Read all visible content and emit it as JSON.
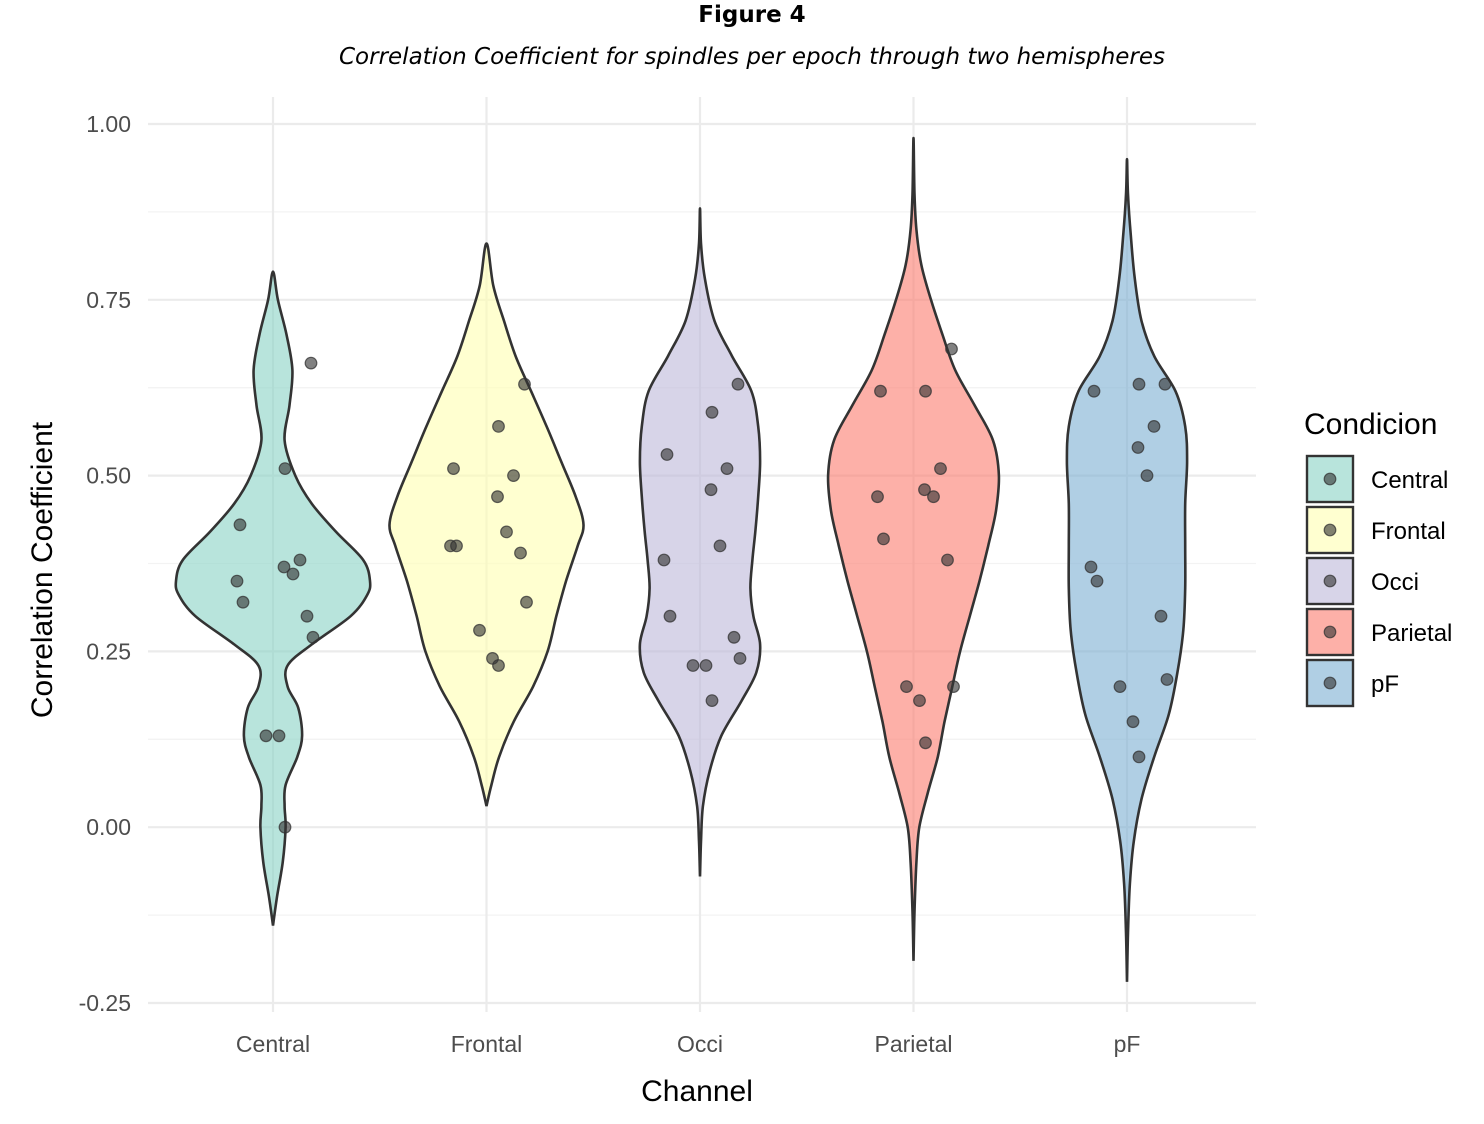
{
  "figure_label": "Figure 4",
  "figure_title": "Correlation Coefficient for spindles per epoch through two hemispheres",
  "chart_data": {
    "type": "violin",
    "xlabel": "Channel",
    "ylabel": "Correlation Coefficient",
    "ylim": [
      -0.25,
      1.0
    ],
    "yticks": [
      -0.25,
      0.0,
      0.25,
      0.5,
      0.75,
      1.0
    ],
    "ytick_labels": [
      "-0.25",
      "0.00",
      "0.25",
      "0.50",
      "0.75",
      "1.00"
    ],
    "grid": true,
    "legend": {
      "title": "Condicion",
      "placement": "right"
    },
    "categories": [
      "Central",
      "Frontal",
      "Occi",
      "Parietal",
      "pF"
    ],
    "series": [
      {
        "name": "Central",
        "color": "#8dd3c7",
        "range": [
          -0.14,
          0.79
        ],
        "density": [
          [
            -0.14,
            0.0
          ],
          [
            -0.1,
            0.04
          ],
          [
            -0.05,
            0.1
          ],
          [
            0.0,
            0.13
          ],
          [
            0.03,
            0.12
          ],
          [
            0.06,
            0.13
          ],
          [
            0.1,
            0.25
          ],
          [
            0.13,
            0.3
          ],
          [
            0.17,
            0.26
          ],
          [
            0.2,
            0.15
          ],
          [
            0.23,
            0.15
          ],
          [
            0.26,
            0.4
          ],
          [
            0.3,
            0.8
          ],
          [
            0.33,
            0.97
          ],
          [
            0.35,
            1.0
          ],
          [
            0.38,
            0.93
          ],
          [
            0.42,
            0.65
          ],
          [
            0.46,
            0.4
          ],
          [
            0.5,
            0.23
          ],
          [
            0.55,
            0.12
          ],
          [
            0.6,
            0.17
          ],
          [
            0.65,
            0.2
          ],
          [
            0.7,
            0.14
          ],
          [
            0.75,
            0.05
          ],
          [
            0.79,
            0.0
          ]
        ],
        "points": [
          [
            0.66,
            0.65
          ],
          [
            0.51,
            0.51
          ],
          [
            0.43,
            0.43
          ],
          [
            0.38,
            0.38
          ],
          [
            0.37,
            0.37
          ],
          [
            0.36,
            0.36
          ],
          [
            0.35,
            0.35
          ],
          [
            0.32,
            0.32
          ],
          [
            0.3,
            0.3
          ],
          [
            0.27,
            0.27
          ],
          [
            0.13,
            0.13
          ],
          [
            0.13,
            0.13
          ],
          [
            0.0,
            0.0
          ]
        ]
      },
      {
        "name": "Frontal",
        "color": "#ffffb3",
        "range": [
          0.03,
          0.83
        ],
        "density": [
          [
            0.03,
            0.0
          ],
          [
            0.06,
            0.05
          ],
          [
            0.1,
            0.13
          ],
          [
            0.15,
            0.28
          ],
          [
            0.2,
            0.48
          ],
          [
            0.25,
            0.63
          ],
          [
            0.3,
            0.72
          ],
          [
            0.35,
            0.82
          ],
          [
            0.4,
            0.94
          ],
          [
            0.43,
            1.0
          ],
          [
            0.47,
            0.92
          ],
          [
            0.52,
            0.77
          ],
          [
            0.57,
            0.62
          ],
          [
            0.62,
            0.46
          ],
          [
            0.67,
            0.3
          ],
          [
            0.72,
            0.18
          ],
          [
            0.77,
            0.07
          ],
          [
            0.83,
            0.0
          ]
        ],
        "points": [
          [
            0.63,
            0.63
          ],
          [
            0.57,
            0.57
          ],
          [
            0.51,
            0.51
          ],
          [
            0.5,
            0.5
          ],
          [
            0.47,
            0.47
          ],
          [
            0.42,
            0.42
          ],
          [
            0.4,
            0.4
          ],
          [
            0.4,
            0.4
          ],
          [
            0.39,
            0.39
          ],
          [
            0.32,
            0.32
          ],
          [
            0.28,
            0.28
          ],
          [
            0.24,
            0.24
          ],
          [
            0.23,
            0.23
          ]
        ]
      },
      {
        "name": "Occi",
        "color": "#bebada",
        "range": [
          -0.07,
          0.88
        ],
        "density": [
          [
            -0.07,
            0.0
          ],
          [
            -0.02,
            0.01
          ],
          [
            0.03,
            0.03
          ],
          [
            0.08,
            0.1
          ],
          [
            0.13,
            0.22
          ],
          [
            0.18,
            0.43
          ],
          [
            0.22,
            0.58
          ],
          [
            0.26,
            0.62
          ],
          [
            0.3,
            0.55
          ],
          [
            0.34,
            0.52
          ],
          [
            0.38,
            0.54
          ],
          [
            0.42,
            0.57
          ],
          [
            0.47,
            0.6
          ],
          [
            0.52,
            0.62
          ],
          [
            0.57,
            0.6
          ],
          [
            0.62,
            0.53
          ],
          [
            0.67,
            0.33
          ],
          [
            0.72,
            0.15
          ],
          [
            0.78,
            0.05
          ],
          [
            0.83,
            0.01
          ],
          [
            0.88,
            0.0
          ]
        ],
        "points": [
          [
            0.63,
            0.63
          ],
          [
            0.59,
            0.59
          ],
          [
            0.53,
            0.53
          ],
          [
            0.51,
            0.51
          ],
          [
            0.48,
            0.48
          ],
          [
            0.4,
            0.4
          ],
          [
            0.38,
            0.38
          ],
          [
            0.3,
            0.3
          ],
          [
            0.27,
            0.27
          ],
          [
            0.24,
            0.24
          ],
          [
            0.23,
            0.23
          ],
          [
            0.23,
            0.23
          ],
          [
            0.18,
            0.18
          ]
        ]
      },
      {
        "name": "Parietal",
        "color": "#fb8072",
        "range": [
          -0.19,
          0.98
        ],
        "density": [
          [
            -0.19,
            0.0
          ],
          [
            -0.12,
            0.01
          ],
          [
            -0.05,
            0.03
          ],
          [
            0.0,
            0.06
          ],
          [
            0.05,
            0.15
          ],
          [
            0.1,
            0.25
          ],
          [
            0.15,
            0.32
          ],
          [
            0.2,
            0.4
          ],
          [
            0.25,
            0.48
          ],
          [
            0.3,
            0.58
          ],
          [
            0.35,
            0.68
          ],
          [
            0.4,
            0.77
          ],
          [
            0.45,
            0.85
          ],
          [
            0.5,
            0.88
          ],
          [
            0.55,
            0.82
          ],
          [
            0.6,
            0.63
          ],
          [
            0.65,
            0.43
          ],
          [
            0.7,
            0.3
          ],
          [
            0.75,
            0.18
          ],
          [
            0.8,
            0.08
          ],
          [
            0.85,
            0.03
          ],
          [
            0.9,
            0.01
          ],
          [
            0.98,
            0.0
          ]
        ],
        "points": [
          [
            0.68,
            0.68
          ],
          [
            0.62,
            0.62
          ],
          [
            0.62,
            0.62
          ],
          [
            0.51,
            0.51
          ],
          [
            0.48,
            0.48
          ],
          [
            0.47,
            0.47
          ],
          [
            0.47,
            0.47
          ],
          [
            0.41,
            0.41
          ],
          [
            0.38,
            0.38
          ],
          [
            0.2,
            0.2
          ],
          [
            0.2,
            0.2
          ],
          [
            0.18,
            0.18
          ],
          [
            0.12,
            0.12
          ]
        ]
      },
      {
        "name": "pF",
        "color": "#80b1d3",
        "range": [
          -0.22,
          0.95
        ],
        "density": [
          [
            -0.22,
            0.0
          ],
          [
            -0.15,
            0.01
          ],
          [
            -0.08,
            0.03
          ],
          [
            -0.02,
            0.07
          ],
          [
            0.04,
            0.15
          ],
          [
            0.1,
            0.28
          ],
          [
            0.16,
            0.43
          ],
          [
            0.22,
            0.52
          ],
          [
            0.28,
            0.58
          ],
          [
            0.34,
            0.6
          ],
          [
            0.4,
            0.6
          ],
          [
            0.46,
            0.6
          ],
          [
            0.52,
            0.62
          ],
          [
            0.57,
            0.6
          ],
          [
            0.62,
            0.5
          ],
          [
            0.67,
            0.28
          ],
          [
            0.72,
            0.15
          ],
          [
            0.78,
            0.08
          ],
          [
            0.84,
            0.04
          ],
          [
            0.9,
            0.01
          ],
          [
            0.95,
            0.0
          ]
        ],
        "points": [
          [
            0.63,
            0.63
          ],
          [
            0.63,
            0.63
          ],
          [
            0.62,
            0.62
          ],
          [
            0.57,
            0.57
          ],
          [
            0.54,
            0.54
          ],
          [
            0.5,
            0.5
          ],
          [
            0.37,
            0.37
          ],
          [
            0.35,
            0.35
          ],
          [
            0.3,
            0.3
          ],
          [
            0.21,
            0.21
          ],
          [
            0.2,
            0.2
          ],
          [
            0.15,
            0.15
          ],
          [
            0.1,
            0.1
          ]
        ]
      }
    ]
  }
}
